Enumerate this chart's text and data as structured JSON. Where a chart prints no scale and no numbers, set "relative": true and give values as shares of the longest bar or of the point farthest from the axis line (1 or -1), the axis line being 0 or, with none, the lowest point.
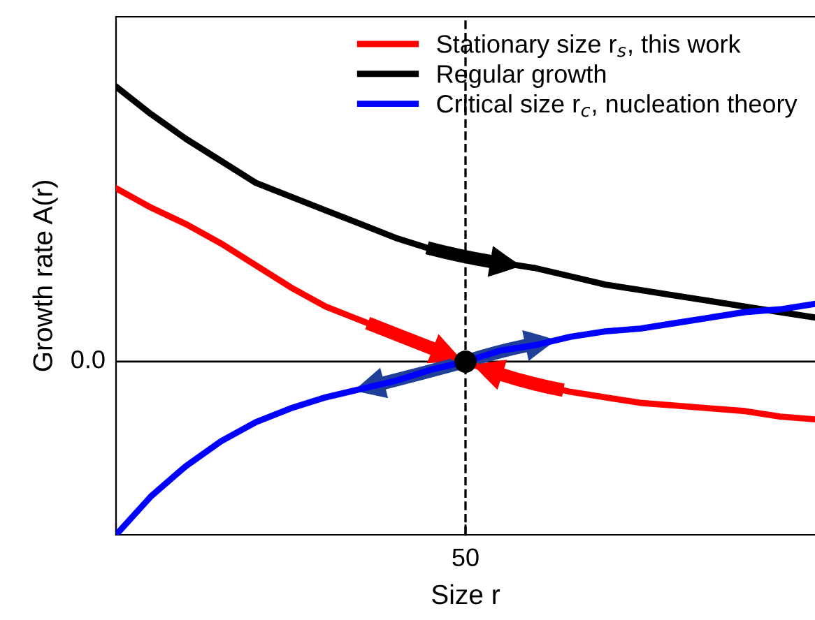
{
  "chart_data": {
    "type": "line",
    "xlabel": "Size r",
    "ylabel": "Growth rate A(r)",
    "relative": true,
    "categories": [
      null,
      null,
      null,
      null,
      null,
      null,
      null,
      null,
      null,
      null,
      null,
      null,
      null,
      null,
      null,
      null,
      null,
      null,
      null,
      null,
      null
    ],
    "series": [
      {
        "name": "Stationary size r$_{s}$, this work",
        "color": "#ff0000",
        "values": [
          0.63,
          0.56,
          0.5,
          0.43,
          0.35,
          0.27,
          0.2,
          0.15,
          0.1,
          0.05,
          0,
          -0.05,
          -0.08,
          -0.11,
          -0.13,
          -0.15,
          -0.16,
          -0.17,
          -0.18,
          -0.2,
          -0.21
        ]
      },
      {
        "name": "Regular growth",
        "color": "#000000",
        "values": [
          1,
          0.9,
          0.81,
          0.73,
          0.65,
          0.6,
          0.55,
          0.5,
          0.45,
          0.41,
          0.38,
          0.36,
          0.34,
          0.31,
          0.28,
          0.26,
          0.24,
          0.22,
          0.2,
          0.18,
          0.16
        ]
      },
      {
        "name": "Critical size r$_{c}$, nucleation theory",
        "color": "#0000ff",
        "values": [
          -0.63,
          -0.49,
          -0.38,
          -0.29,
          -0.22,
          -0.17,
          -0.13,
          -0.1,
          -0.07,
          -0.03,
          0,
          0.04,
          0.06,
          0.09,
          0.11,
          0.12,
          0.14,
          0.16,
          0.18,
          0.19,
          0.21
        ]
      }
    ],
    "ref_lines": [
      {
        "axis": "y",
        "label": "0.0",
        "color": "#000000"
      },
      {
        "axis": "x",
        "label": "50",
        "color": "#000000",
        "line_style": "dashed"
      }
    ],
    "legend": "top right",
    "grid": false,
    "marker": "none",
    "line_style": "solid"
  }
}
